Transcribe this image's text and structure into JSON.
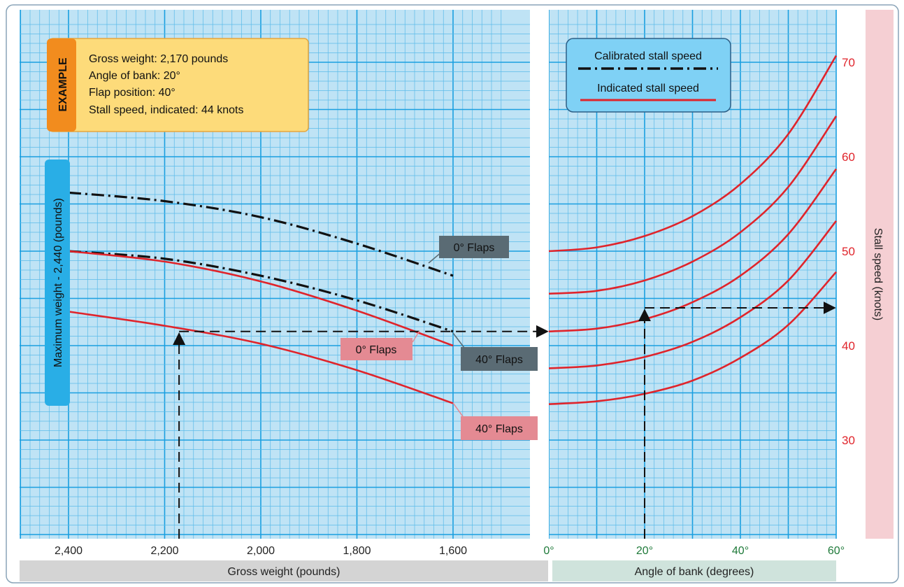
{
  "example": {
    "tag": "EXAMPLE",
    "lines": [
      "Gross weight:  2,170 pounds",
      "Angle of bank: 20°",
      "Flap position:  40°",
      "Stall speed, indicated: 44 knots"
    ]
  },
  "legend": {
    "calibrated": "Calibrated stall speed",
    "indicated": "Indicated stall speed"
  },
  "max_weight_label": "Maximum weight - 2,440 (pounds)",
  "y_axis_title": "Stall speed (knots)",
  "x_axis_title_left": "Gross weight (pounds)",
  "x_axis_title_right": "Angle of bank (degrees)",
  "curve_labels": [
    {
      "id": "cal-0",
      "text": "0° Flaps",
      "style": "dark"
    },
    {
      "id": "cal-40",
      "text": "40° Flaps",
      "style": "dark"
    },
    {
      "id": "ind-0",
      "text": "0° Flaps",
      "style": "pink"
    },
    {
      "id": "ind-40",
      "text": "40° Flaps",
      "style": "pink"
    }
  ],
  "colors": {
    "grid_bg": "#bfe3f5",
    "grid_major": "#1a9fe0",
    "grid_minor": "#5bbbe9",
    "indicated": "#e0242b",
    "calibrated": "#111111",
    "right_axis_labels": "#e0242b",
    "bank_tick_labels": "#1f7a3a",
    "example_tag": "#f28c1e",
    "example_box": "#fddb7a",
    "legend_box": "#7fd1f5",
    "max_weight_tag": "#29aee6",
    "stall_band": "#f5cfd3",
    "axis_title_left_bg": "#d4d4d4",
    "axis_title_right_bg": "#cfe3dc",
    "dark_label_bg": "#5a6b74",
    "pink_label_bg": "#e48a93"
  },
  "chart_data": {
    "type": "line",
    "panels": [
      {
        "name": "gross weight",
        "xlabel": "Gross weight (pounds)",
        "xlim": [
          2500,
          1500
        ],
        "x_ticks": [
          2400,
          2200,
          2000,
          1800,
          1600
        ],
        "x_tick_labels": [
          "2,400",
          "2,200",
          "2,000",
          "1,800",
          "1,600"
        ],
        "series": [
          {
            "name": "0° Flaps",
            "kind": "calibrated",
            "x": [
              2400,
              2200,
              2000,
              1800,
              1600
            ],
            "y": [
              56.2,
              55.3,
              53.6,
              50.8,
              47.4
            ]
          },
          {
            "name": "40° Flaps",
            "kind": "calibrated",
            "x": [
              2400,
              2200,
              2000,
              1800,
              1600
            ],
            "y": [
              50.0,
              49.2,
              47.4,
              44.8,
              41.5
            ]
          },
          {
            "name": "0° Flaps",
            "kind": "indicated",
            "x": [
              2400,
              2200,
              2000,
              1800,
              1600
            ],
            "y": [
              50.0,
              48.9,
              46.8,
              43.7,
              40.0
            ]
          },
          {
            "name": "40° Flaps",
            "kind": "indicated",
            "x": [
              2400,
              2200,
              2000,
              1800,
              1600
            ],
            "y": [
              43.6,
              42.1,
              40.2,
              37.4,
              33.9
            ]
          }
        ]
      },
      {
        "name": "angle of bank",
        "xlabel": "Angle of bank (degrees)",
        "xlim": [
          0,
          60
        ],
        "x_ticks": [
          0,
          20,
          40,
          60
        ],
        "x_tick_labels": [
          "0°",
          "20°",
          "40°",
          "60°"
        ],
        "ylabel": "Stall speed (knots)",
        "ylim": [
          20,
          75
        ],
        "y_ticks": [
          30,
          40,
          50,
          60,
          70
        ],
        "y_tick_labels": [
          "30",
          "40",
          "50",
          "60",
          "70"
        ],
        "series": [
          {
            "kind": "indicated",
            "x": [
              0,
              10,
              20,
              30,
              40,
              50,
              60
            ],
            "y": [
              50.0,
              50.4,
              51.6,
              53.7,
              57.1,
              62.4,
              70.7
            ]
          },
          {
            "kind": "indicated",
            "x": [
              0,
              10,
              20,
              30,
              40,
              50,
              60
            ],
            "y": [
              45.5,
              45.8,
              46.9,
              48.9,
              52.0,
              56.8,
              64.3
            ]
          },
          {
            "kind": "indicated",
            "x": [
              0,
              10,
              20,
              30,
              40,
              50,
              60
            ],
            "y": [
              41.5,
              41.8,
              42.8,
              44.6,
              47.4,
              51.8,
              58.7
            ]
          },
          {
            "kind": "indicated",
            "x": [
              0,
              10,
              20,
              30,
              40,
              50,
              60
            ],
            "y": [
              37.6,
              37.9,
              38.8,
              40.4,
              43.0,
              46.9,
              53.2
            ]
          },
          {
            "kind": "indicated",
            "x": [
              0,
              10,
              20,
              30,
              40,
              50,
              60
            ],
            "y": [
              33.8,
              34.1,
              34.9,
              36.3,
              38.7,
              42.2,
              47.8
            ]
          }
        ]
      }
    ],
    "example_path": {
      "gross_weight": 2170,
      "flap_position": 40,
      "angle_of_bank": 20,
      "stall_speed_at_weight": 41.5,
      "stall_speed_indicated": 44
    },
    "grid": true,
    "legend": "top-right"
  }
}
